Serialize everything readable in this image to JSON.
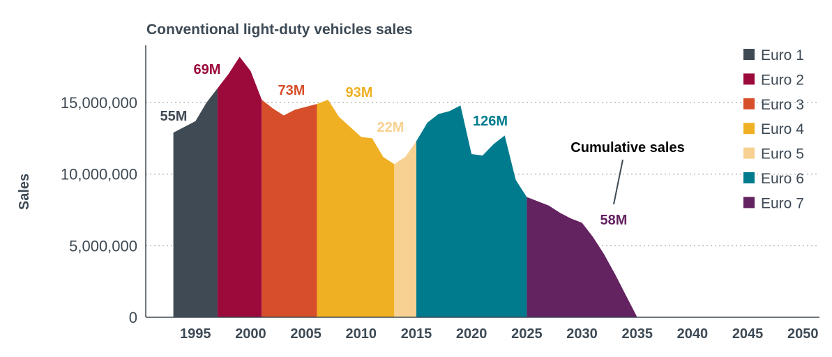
{
  "chart_data": {
    "type": "area",
    "title": "Conventional light-duty vehicles sales",
    "xlabel": "",
    "ylabel": "Sales",
    "xlim": [
      1990.5,
      2051.5
    ],
    "ylim": [
      0,
      19000000
    ],
    "grid": "horizontal dotted",
    "legend_position": "top-right",
    "x_ticks": [
      1995,
      2000,
      2005,
      2010,
      2015,
      2020,
      2025,
      2030,
      2035,
      2040,
      2045,
      2050
    ],
    "x_tick_labels": [
      "1995",
      "2000",
      "2005",
      "2010",
      "2015",
      "2020",
      "2025",
      "2030",
      "2035",
      "2040",
      "2045",
      "2050"
    ],
    "y_ticks": [
      0,
      5000000,
      10000000,
      15000000
    ],
    "y_tick_labels": [
      "0",
      "5,000,000",
      "10,000,000",
      "15,000,000"
    ],
    "x": [
      1993,
      1994,
      1995,
      1996,
      1997,
      1998,
      1999,
      2000,
      2001,
      2002,
      2003,
      2004,
      2005,
      2006,
      2007,
      2008,
      2009,
      2010,
      2011,
      2012,
      2013,
      2014,
      2015,
      2016,
      2017,
      2018,
      2019,
      2020,
      2021,
      2022,
      2023,
      2024,
      2025,
      2026,
      2027,
      2028,
      2029,
      2030,
      2031,
      2032,
      2033,
      2034,
      2035,
      2036,
      2037,
      2038,
      2039,
      2040,
      2041,
      2042,
      2043,
      2044,
      2045,
      2046,
      2047,
      2048,
      2049,
      2050
    ],
    "y": [
      12900000,
      13300000,
      13700000,
      15000000,
      16000000,
      17000000,
      18200000,
      17200000,
      15200000,
      14600000,
      14100000,
      14500000,
      14700000,
      14900000,
      15200000,
      14000000,
      13300000,
      12600000,
      12500000,
      11200000,
      10700000,
      11200000,
      12300000,
      13600000,
      14200000,
      14400000,
      14800000,
      11400000,
      11300000,
      12100000,
      12700000,
      9600000,
      8400000,
      8100000,
      7800000,
      7300000,
      6900000,
      6600000,
      5600000,
      4400000,
      3000000,
      1500000,
      0,
      0,
      0,
      0,
      0,
      0,
      0,
      0,
      0,
      0,
      0,
      0,
      0,
      0,
      0,
      0
    ],
    "series": [
      {
        "name": "Euro 1",
        "color": "#3f4a54",
        "from": 1993,
        "to": 1997,
        "total_label": "55M"
      },
      {
        "name": "Euro 2",
        "color": "#9c0a3b",
        "from": 1997,
        "to": 2001,
        "total_label": "69M"
      },
      {
        "name": "Euro 3",
        "color": "#d74e2a",
        "from": 2001,
        "to": 2006,
        "total_label": "73M"
      },
      {
        "name": "Euro 4",
        "color": "#f0b023",
        "from": 2006,
        "to": 2013,
        "total_label": "93M"
      },
      {
        "name": "Euro 5",
        "color": "#f6d191",
        "from": 2013,
        "to": 2015,
        "total_label": "22M"
      },
      {
        "name": "Euro 6",
        "color": "#007b8e",
        "from": 2015,
        "to": 2025,
        "total_label": "126M"
      },
      {
        "name": "Euro 7",
        "color": "#632260",
        "from": 2025,
        "to": 2035,
        "total_label": "58M"
      }
    ],
    "annotations": [
      {
        "text": "Cumulative sales",
        "color": "#3d4a55"
      }
    ]
  }
}
